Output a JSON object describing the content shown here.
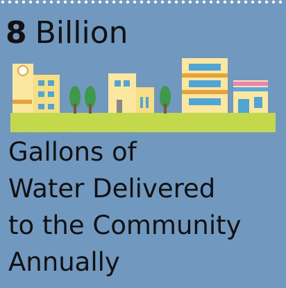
{
  "headline": {
    "number": "8",
    "unit": "Billion"
  },
  "caption": [
    "Gallons of",
    "Water Delivered",
    "to the Community",
    "Annually"
  ]
}
